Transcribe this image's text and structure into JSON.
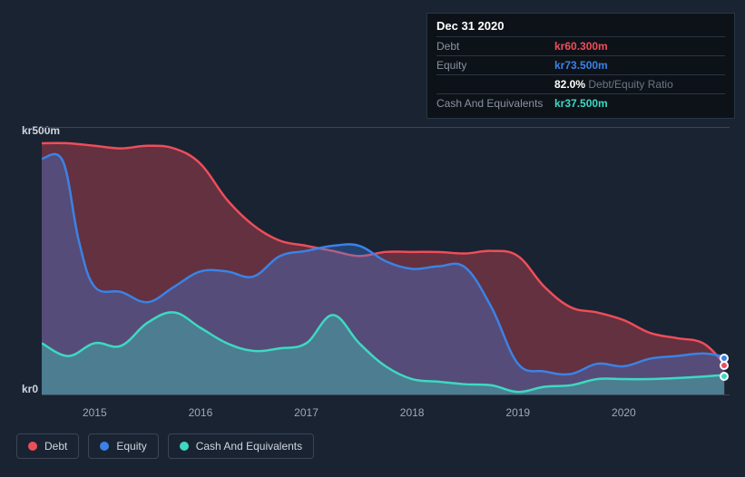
{
  "tooltip": {
    "date": "Dec 31 2020",
    "rows": [
      {
        "label": "Debt",
        "value": "kr60.300m",
        "colorClass": "c-debt"
      },
      {
        "label": "Equity",
        "value": "kr73.500m",
        "colorClass": "c-equity"
      },
      {
        "label": "",
        "value": "82.0%",
        "suffix": " Debt/Equity Ratio",
        "colorClass": "c-white"
      },
      {
        "label": "Cash And Equivalents",
        "value": "kr37.500m",
        "colorClass": "c-cash"
      }
    ]
  },
  "chart": {
    "type": "area",
    "background_color": "#1a2332",
    "grid_color": "#3a4556",
    "ylim": [
      0,
      520
    ],
    "ylabels": [
      {
        "text": "kr500m",
        "y": 500
      },
      {
        "text": "kr0",
        "y": 0
      }
    ],
    "xdomain": [
      2014.5,
      2021.0
    ],
    "xticks": [
      2015,
      2016,
      2017,
      2018,
      2019,
      2020
    ],
    "tick_fontsize": 12,
    "line_width": 2.5,
    "fill_opacity": 0.35,
    "marker_x": 2020.95,
    "series": [
      {
        "name": "Debt",
        "color": "#ef4d5a",
        "points": [
          [
            2014.5,
            490
          ],
          [
            2014.75,
            490
          ],
          [
            2015.0,
            485
          ],
          [
            2015.25,
            480
          ],
          [
            2015.5,
            485
          ],
          [
            2015.75,
            480
          ],
          [
            2016.0,
            450
          ],
          [
            2016.25,
            380
          ],
          [
            2016.5,
            330
          ],
          [
            2016.75,
            300
          ],
          [
            2017.0,
            290
          ],
          [
            2017.25,
            280
          ],
          [
            2017.5,
            270
          ],
          [
            2017.75,
            278
          ],
          [
            2018.0,
            278
          ],
          [
            2018.25,
            278
          ],
          [
            2018.5,
            275
          ],
          [
            2018.75,
            280
          ],
          [
            2019.0,
            270
          ],
          [
            2019.25,
            210
          ],
          [
            2019.5,
            170
          ],
          [
            2019.75,
            160
          ],
          [
            2020.0,
            145
          ],
          [
            2020.25,
            120
          ],
          [
            2020.5,
            110
          ],
          [
            2020.75,
            100
          ],
          [
            2020.95,
            60
          ]
        ]
      },
      {
        "name": "Equity",
        "color": "#3b82e6",
        "points": [
          [
            2014.5,
            460
          ],
          [
            2014.7,
            455
          ],
          [
            2014.85,
            300
          ],
          [
            2015.0,
            210
          ],
          [
            2015.25,
            200
          ],
          [
            2015.5,
            180
          ],
          [
            2015.75,
            210
          ],
          [
            2016.0,
            240
          ],
          [
            2016.25,
            240
          ],
          [
            2016.5,
            230
          ],
          [
            2016.75,
            270
          ],
          [
            2017.0,
            280
          ],
          [
            2017.25,
            290
          ],
          [
            2017.5,
            290
          ],
          [
            2017.75,
            260
          ],
          [
            2018.0,
            245
          ],
          [
            2018.25,
            250
          ],
          [
            2018.5,
            248
          ],
          [
            2018.75,
            170
          ],
          [
            2019.0,
            60
          ],
          [
            2019.25,
            45
          ],
          [
            2019.5,
            40
          ],
          [
            2019.75,
            60
          ],
          [
            2020.0,
            55
          ],
          [
            2020.25,
            70
          ],
          [
            2020.5,
            75
          ],
          [
            2020.75,
            80
          ],
          [
            2020.95,
            74
          ]
        ]
      },
      {
        "name": "Cash And Equivalents",
        "color": "#3dd9c1",
        "points": [
          [
            2014.5,
            100
          ],
          [
            2014.75,
            75
          ],
          [
            2015.0,
            100
          ],
          [
            2015.25,
            95
          ],
          [
            2015.5,
            140
          ],
          [
            2015.75,
            160
          ],
          [
            2016.0,
            130
          ],
          [
            2016.25,
            100
          ],
          [
            2016.5,
            85
          ],
          [
            2016.75,
            90
          ],
          [
            2017.0,
            100
          ],
          [
            2017.25,
            155
          ],
          [
            2017.5,
            100
          ],
          [
            2017.75,
            55
          ],
          [
            2018.0,
            30
          ],
          [
            2018.25,
            25
          ],
          [
            2018.5,
            20
          ],
          [
            2018.75,
            18
          ],
          [
            2019.0,
            5
          ],
          [
            2019.25,
            15
          ],
          [
            2019.5,
            18
          ],
          [
            2019.75,
            30
          ],
          [
            2020.0,
            30
          ],
          [
            2020.25,
            30
          ],
          [
            2020.5,
            32
          ],
          [
            2020.75,
            35
          ],
          [
            2020.95,
            38
          ]
        ]
      }
    ]
  },
  "legend": [
    {
      "label": "Debt",
      "color": "#ef4d5a"
    },
    {
      "label": "Equity",
      "color": "#3b82e6"
    },
    {
      "label": "Cash And Equivalents",
      "color": "#3dd9c1"
    }
  ]
}
